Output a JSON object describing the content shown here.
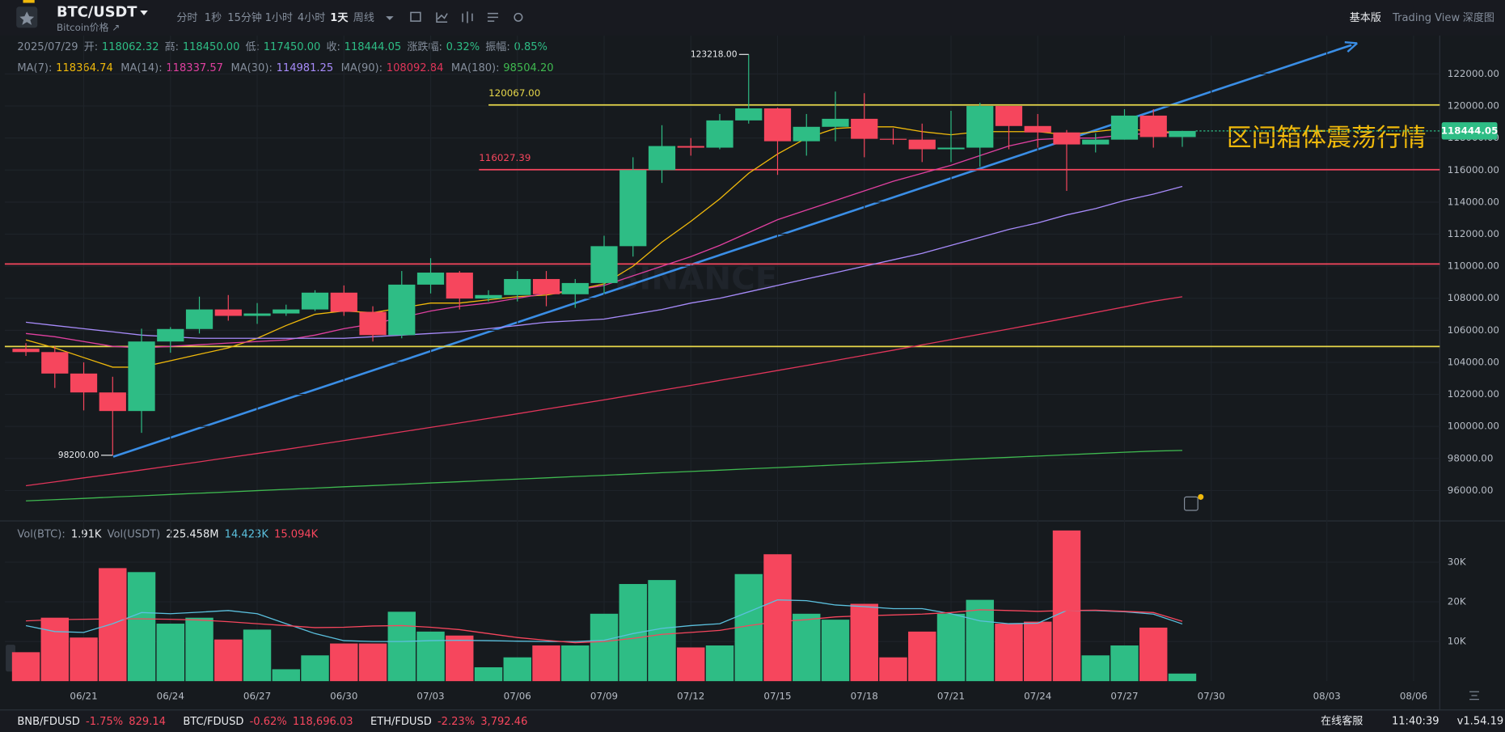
{
  "toolbar": {
    "symbol": "BTC/USDT",
    "subtitle": "Bitcoin价格 ↗",
    "intervals": [
      "分时",
      "1秒",
      "15分钟",
      "1小时",
      "4小时",
      "1天",
      "周线"
    ],
    "selected": "1天",
    "views": [
      "基本版",
      "Trading View",
      "深度图"
    ]
  },
  "info": {
    "date": "2025/07/29",
    "items": [
      {
        "label": "开:",
        "value": "118062.32"
      },
      {
        "label": "高:",
        "value": "118450.00"
      },
      {
        "label": "低:",
        "value": "117450.00"
      },
      {
        "label": "收:",
        "value": "118444.05"
      },
      {
        "label": "涨跌幅:",
        "value": "0.32%"
      },
      {
        "label": "振幅:",
        "value": "0.85%"
      }
    ]
  },
  "status_bar": {
    "tickers": [
      {
        "pair": "BNB/FDUSD",
        "change": "-1.75%",
        "price": "829.14"
      },
      {
        "pair": "BTC/FDUSD",
        "change": "-0.62%",
        "price": "118,696.03"
      },
      {
        "pair": "ETH/FDUSD",
        "change": "-2.23%",
        "price": "3,792.46"
      }
    ],
    "support": "在线客服",
    "time": "11:40:39",
    "version": "v1.54.19"
  },
  "chart_data": {
    "type": "candlestick",
    "watermark": "BINANCE",
    "annotation": "区间箱体震荡行情",
    "up_color": "#2ebd85",
    "down_color": "#f6465d",
    "categories": [
      null,
      null,
      "06/21",
      null,
      null,
      "06/24",
      null,
      null,
      "06/27",
      null,
      null,
      "06/30",
      null,
      null,
      "07/03",
      null,
      null,
      "07/06",
      null,
      null,
      "07/09",
      null,
      null,
      "07/12",
      null,
      null,
      "07/15",
      null,
      null,
      "07/18",
      null,
      null,
      "07/21",
      null,
      null,
      "07/24",
      null,
      null,
      "07/27",
      null,
      null,
      "07/30",
      null,
      null,
      null,
      "08/03",
      null,
      null,
      "08/06",
      null
    ],
    "open": [
      104850,
      104640,
      103300,
      102120,
      100960,
      105300,
      106080,
      107300,
      106900,
      107050,
      107300,
      108350,
      107150,
      105700,
      108850,
      109600,
      107980,
      108200,
      109200,
      108250,
      108950,
      111250,
      116000,
      117500,
      117400,
      119100,
      119850,
      117800,
      118700,
      119200,
      117950,
      117900,
      117300,
      117400,
      120000,
      118750,
      118350,
      117600,
      117900,
      119400,
      118062.32,
      null,
      null,
      null,
      null,
      null,
      null,
      null,
      null,
      null
    ],
    "high": [
      105200,
      105000,
      104000,
      103100,
      106100,
      106200,
      108100,
      108200,
      107700,
      107600,
      108500,
      108800,
      107500,
      109700,
      110500,
      109700,
      108500,
      109700,
      109700,
      109200,
      111900,
      116800,
      118800,
      118000,
      119500,
      123218,
      119900,
      119500,
      120900,
      120800,
      118600,
      118900,
      119700,
      120200,
      120000,
      119500,
      118500,
      118300,
      119800,
      119800,
      118450,
      null,
      null,
      null,
      null,
      null,
      null,
      null,
      null,
      null
    ],
    "low": [
      104400,
      102400,
      101000,
      98200,
      99600,
      104600,
      105800,
      106600,
      106400,
      106900,
      107200,
      106900,
      105300,
      105500,
      108300,
      107300,
      107800,
      107800,
      107500,
      107400,
      108300,
      110600,
      115200,
      116900,
      117300,
      118900,
      115700,
      116900,
      117800,
      116800,
      117600,
      116500,
      116500,
      116200,
      117300,
      117400,
      114700,
      117100,
      117900,
      117400,
      117450,
      null,
      null,
      null,
      null,
      null,
      null,
      null,
      null,
      null
    ],
    "close": [
      104640,
      103300,
      102120,
      100960,
      105300,
      106080,
      107300,
      106900,
      107050,
      107300,
      108350,
      107150,
      105700,
      108850,
      109600,
      107980,
      108200,
      109200,
      108250,
      108950,
      111250,
      116000,
      117500,
      117400,
      119100,
      119850,
      117800,
      118700,
      119200,
      117950,
      117900,
      117300,
      117400,
      120000,
      118750,
      118350,
      117600,
      117900,
      119400,
      118062.32,
      118444.05,
      null,
      null,
      null,
      null,
      null,
      null,
      null,
      null,
      null
    ],
    "high_label": "123218.00",
    "low_label": "98200.00",
    "last_price_label": "118444.05",
    "ylim": [
      94100,
      124400
    ],
    "yticks": [
      {
        "value": 96000,
        "label": "96000.00"
      },
      {
        "value": 98000,
        "label": "98000.00"
      },
      {
        "value": 100000,
        "label": "100000.00"
      },
      {
        "value": 102000,
        "label": "102000.00"
      },
      {
        "value": 104000,
        "label": "104000.00"
      },
      {
        "value": 106000,
        "label": "106000.00"
      },
      {
        "value": 108000,
        "label": "108000.00"
      },
      {
        "value": 110000,
        "label": "110000.00"
      },
      {
        "value": 112000,
        "label": "112000.00"
      },
      {
        "value": 114000,
        "label": "114000.00"
      },
      {
        "value": 116000,
        "label": "116000.00"
      },
      {
        "value": 118000,
        "label": "118000.00"
      },
      {
        "value": 120000,
        "label": "120000.00"
      },
      {
        "value": 122000,
        "label": "122000.00"
      }
    ],
    "hlines": [
      {
        "value": 120067,
        "label": "120067.00",
        "color": "#e8d84a"
      },
      {
        "value": 116027.39,
        "label": "116027.39",
        "color": "#f6465d"
      },
      {
        "value": 110140,
        "color": "#f6465d"
      },
      {
        "value": 104990,
        "color": "#e8d84a"
      }
    ],
    "series": [
      {
        "name": "MA(7):",
        "color": "#f0b90b",
        "value_label": "118364.74",
        "values": [
          105400,
          104900,
          104300,
          103700,
          103700,
          104100,
          104500,
          104900,
          105500,
          106300,
          107000,
          107200,
          107100,
          107400,
          107700,
          107700,
          107900,
          108100,
          108200,
          108500,
          108900,
          110000,
          111500,
          112800,
          114200,
          115800,
          117000,
          118000,
          118600,
          118700,
          118700,
          118400,
          118200,
          118400,
          118400,
          118400,
          118200,
          118400,
          118600,
          118400,
          118364.74,
          null,
          null,
          null,
          null,
          null,
          null,
          null,
          null,
          null
        ]
      },
      {
        "name": "MA(14):",
        "color": "#e040a0",
        "value_label": "118337.57",
        "values": [
          105800,
          105600,
          105300,
          105000,
          104900,
          105000,
          105100,
          105200,
          105300,
          105400,
          105700,
          106100,
          106400,
          106800,
          107200,
          107500,
          107700,
          108000,
          108300,
          108500,
          108800,
          109400,
          110000,
          110600,
          111300,
          112100,
          112900,
          113500,
          114100,
          114700,
          115300,
          115800,
          116300,
          116900,
          117500,
          117900,
          118000,
          118000,
          118200,
          118300,
          118337.57,
          null,
          null,
          null,
          null,
          null,
          null,
          null,
          null,
          null
        ]
      },
      {
        "name": "MA(30):",
        "color": "#a78bfa",
        "value_label": "114981.25",
        "values": [
          106500,
          106300,
          106100,
          105900,
          105700,
          105600,
          105500,
          105500,
          105500,
          105500,
          105500,
          105500,
          105600,
          105700,
          105800,
          105900,
          106100,
          106300,
          106500,
          106600,
          106700,
          107000,
          107300,
          107700,
          108000,
          108400,
          108800,
          109200,
          109600,
          110000,
          110400,
          110800,
          111300,
          111800,
          112300,
          112700,
          113200,
          113600,
          114100,
          114500,
          114981.25,
          null,
          null,
          null,
          null,
          null,
          null,
          null,
          null,
          null
        ]
      },
      {
        "name": "MA(90):",
        "color": "#e0355a",
        "value_label": "108092.84",
        "values": [
          96300,
          96540,
          96790,
          97030,
          97280,
          97540,
          97790,
          98050,
          98310,
          98570,
          98840,
          99110,
          99380,
          99660,
          99940,
          100220,
          100500,
          100790,
          101080,
          101370,
          101660,
          101960,
          102260,
          102560,
          102870,
          103180,
          103490,
          103800,
          104120,
          104440,
          104760,
          105090,
          105420,
          105750,
          106080,
          106420,
          106760,
          107110,
          107460,
          107810,
          108092.84,
          null,
          null,
          null,
          null,
          null,
          null,
          null,
          null,
          null
        ]
      },
      {
        "name": "MA(180):",
        "color": "#3fb950",
        "value_label": "98504.20",
        "values": [
          95350,
          95430,
          95510,
          95590,
          95670,
          95750,
          95830,
          95910,
          95990,
          96070,
          96150,
          96230,
          96310,
          96390,
          96470,
          96550,
          96630,
          96710,
          96790,
          96870,
          96950,
          97030,
          97110,
          97190,
          97270,
          97350,
          97430,
          97510,
          97590,
          97670,
          97750,
          97830,
          97910,
          97990,
          98070,
          98150,
          98230,
          98310,
          98390,
          98460,
          98504.2,
          null,
          null,
          null,
          null,
          null,
          null,
          null,
          null,
          null
        ]
      }
    ],
    "volume": [
      7300,
      16000,
      11000,
      28500,
      27500,
      14500,
      16000,
      10500,
      13000,
      3000,
      6500,
      9500,
      9500,
      17500,
      12500,
      11500,
      3500,
      6000,
      9000,
      9000,
      17000,
      24500,
      25500,
      8500,
      9000,
      27000,
      32000,
      17000,
      15500,
      19500,
      6000,
      12500,
      17000,
      20500,
      14500,
      15000,
      38000,
      6500,
      9000,
      13500,
      1910,
      null,
      null,
      null,
      null,
      null,
      null,
      null,
      null,
      null
    ],
    "volume_legend": {
      "btc_label": "Vol(BTC):",
      "btc_value": "1.91K",
      "usdt_label": "Vol(USDT)",
      "usdt_value": "225.458M"
    },
    "vol_ylim": [
      0,
      40400
    ],
    "vol_yticks": [
      {
        "value": 10000,
        "label": "10K"
      },
      {
        "value": 20000,
        "label": "20K"
      },
      {
        "value": 30000,
        "label": "30K"
      }
    ],
    "vol_series": [
      {
        "color": "#5bc0de",
        "value_label": "14.423K",
        "values": [
          14000,
          12500,
          12300,
          14500,
          17300,
          17000,
          17400,
          17800,
          17000,
          14500,
          12000,
          10200,
          10000,
          10000,
          10200,
          10300,
          10200,
          10100,
          10000,
          10000,
          10300,
          12000,
          13300,
          14000,
          14500,
          17500,
          20500,
          20300,
          19200,
          18800,
          18300,
          18300,
          17000,
          15200,
          14500,
          14600,
          17800,
          17800,
          17500,
          16900,
          14423,
          null,
          null,
          null,
          null,
          null,
          null,
          null,
          null,
          null
        ]
      },
      {
        "color": "#f6465d",
        "value_label": "15.094K",
        "values": [
          15200,
          15500,
          15600,
          15700,
          15700,
          15600,
          15400,
          15000,
          14500,
          14000,
          13500,
          13600,
          13900,
          14000,
          13600,
          13000,
          12000,
          11000,
          10300,
          9700,
          10000,
          10800,
          11800,
          12300,
          12800,
          14000,
          15000,
          15500,
          16200,
          16500,
          16700,
          16900,
          17300,
          18000,
          17800,
          17600,
          17800,
          17900,
          17600,
          17300,
          15094,
          null,
          null,
          null,
          null,
          null,
          null,
          null,
          null,
          null
        ]
      }
    ]
  }
}
